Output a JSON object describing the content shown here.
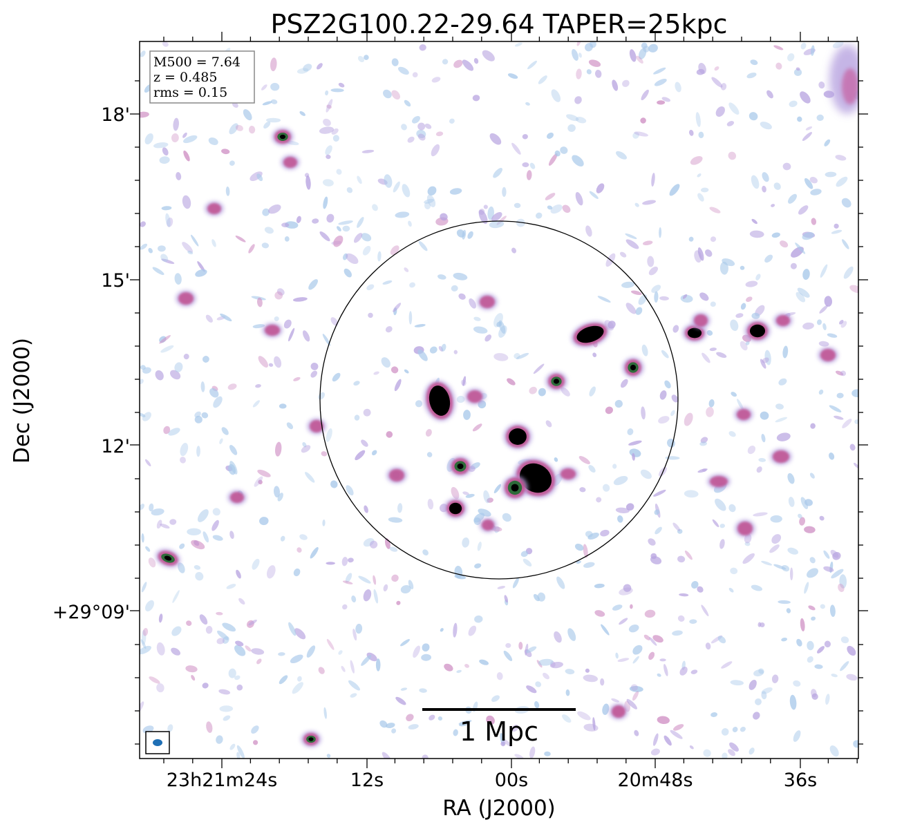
{
  "title": "PSZ2G100.22-29.64 TAPER=25kpc",
  "info_box": {
    "line1": "M500 = 7.64",
    "line2": "z = 0.485",
    "line3": "rms = 0.15"
  },
  "x_axis": {
    "label": "RA (J2000)",
    "ticks": [
      "23h21m24s",
      "12s",
      "00s",
      "20m48s",
      "36s"
    ]
  },
  "y_axis": {
    "label": "Dec (J2000)",
    "ticks": [
      "18'",
      "15'",
      "12'",
      "+29°09'"
    ]
  },
  "scale_bar": {
    "label": "1 Mpc"
  },
  "colors": {
    "noise_light": "#a9c9ea",
    "noise_mid": "#b7a3e0",
    "source_pink": "#c0508f",
    "source_green": "#2e6b3a",
    "source_core": "#000000",
    "beam": "#1f6fb5"
  }
}
